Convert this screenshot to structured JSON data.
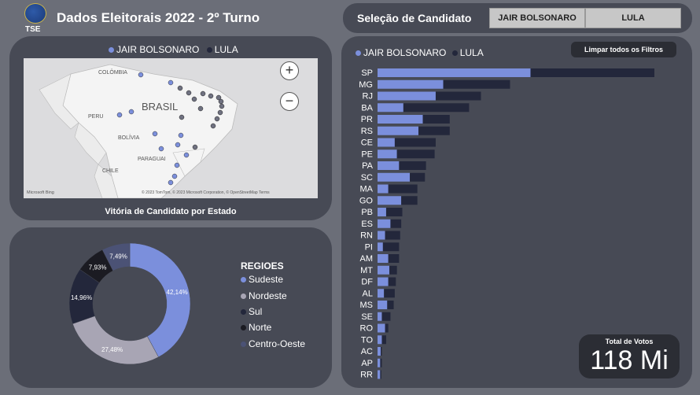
{
  "header": {
    "logo_text": "TSE",
    "title": "Dados Eleitorais 2022 - 2º Turno"
  },
  "selection": {
    "title": "Seleção de Candidato",
    "options": [
      "JAIR BOLSONARO",
      "LULA"
    ]
  },
  "colors": {
    "bolsonaro": "#7b8fdc",
    "lula": "#23273b",
    "panel": "#474a55",
    "background": "#6b6e78"
  },
  "map": {
    "legend": [
      "JAIR BOLSONARO",
      "LULA"
    ],
    "labels": [
      "COLÔMBIA",
      "BRASIL",
      "PERU",
      "BOLÍVIA",
      "PARAGUAI",
      "CHILE"
    ],
    "attribution": "© 2023 TomTom, © 2023 Microsoft Corporation, © OpenStreetMap  Terms",
    "provider": "Microsoft Bing",
    "zoom_in": "+",
    "zoom_out": "−",
    "caption": "Vitória de Candidato por Estado",
    "markers_bolsonaro": 12,
    "markers_lula": 14
  },
  "regions": {
    "title": "REGIOES",
    "items": [
      {
        "name": "Sudeste",
        "color": "#7b8fdc"
      },
      {
        "name": "Nordeste",
        "color": "#a8a5b4"
      },
      {
        "name": "Sul",
        "color": "#23273b"
      },
      {
        "name": "Norte",
        "color": "#1b1b22"
      },
      {
        "name": "Centro-Oeste",
        "color": "#4b5275"
      }
    ]
  },
  "bars": {
    "legend": [
      "JAIR BOLSONARO",
      "LULA"
    ],
    "clear_button": "Limpar todos os Filtros"
  },
  "total": {
    "label": "Total de Votos",
    "value": "118 Mi"
  },
  "chart_data": [
    {
      "type": "pie",
      "categories": [
        "Sudeste",
        "Nordeste",
        "Sul",
        "Norte",
        "Centro-Oeste"
      ],
      "values": [
        42.14,
        27.48,
        14.96,
        7.93,
        7.49
      ],
      "labels": [
        "42,14%",
        "27,48%",
        "14,96%",
        "7,93%",
        "7,49%"
      ],
      "legend_title": "REGIOES"
    },
    {
      "type": "bar",
      "orientation": "horizontal",
      "stacked": true,
      "categories": [
        "SP",
        "MG",
        "RJ",
        "BA",
        "PR",
        "RS",
        "CE",
        "PE",
        "PA",
        "SC",
        "MA",
        "GO",
        "PB",
        "ES",
        "RN",
        "PI",
        "AM",
        "MT",
        "DF",
        "AL",
        "MS",
        "SE",
        "RO",
        "TO",
        "AC",
        "AP",
        "RR"
      ],
      "series": [
        {
          "name": "JAIR BOLSONARO",
          "values": [
            14.2,
            6.1,
            5.4,
            2.4,
            4.2,
            3.8,
            1.6,
            1.8,
            2.0,
            3.0,
            1.0,
            2.2,
            0.8,
            1.2,
            0.7,
            0.5,
            1.0,
            1.1,
            1.0,
            0.6,
            0.9,
            0.4,
            0.7,
            0.4,
            0.3,
            0.25,
            0.25
          ]
        },
        {
          "name": "LULA",
          "values": [
            11.5,
            6.2,
            4.2,
            6.1,
            2.5,
            2.9,
            3.8,
            3.5,
            2.5,
            1.4,
            2.7,
            1.5,
            1.5,
            1.0,
            1.4,
            1.5,
            1.0,
            0.7,
            0.7,
            1.0,
            0.6,
            0.8,
            0.3,
            0.4,
            0.1,
            0.15,
            0.1
          ]
        }
      ]
    }
  ]
}
